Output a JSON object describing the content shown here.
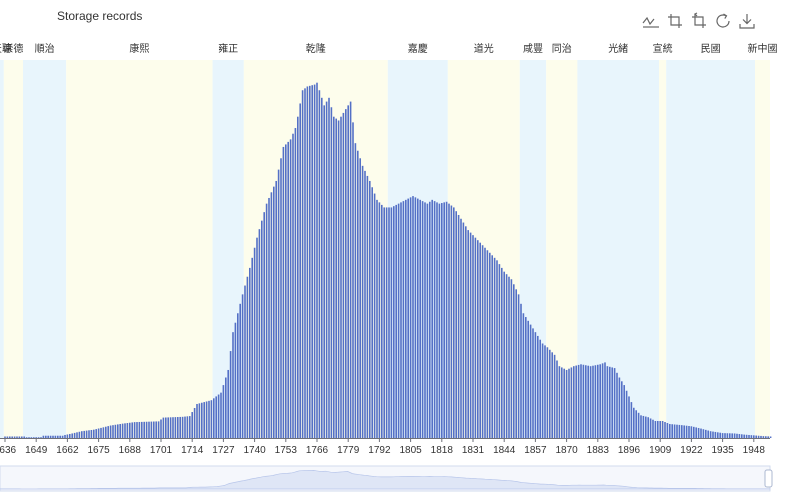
{
  "chart_data": {
    "type": "bar",
    "title": "Storage records",
    "xlabel": "",
    "ylabel": "",
    "x_start": 1636,
    "x_end": 1955,
    "x_tick_labels": [
      "1636",
      "1649",
      "1662",
      "1675",
      "1688",
      "1701",
      "1714",
      "1727",
      "1740",
      "1753",
      "1766",
      "1779",
      "1792",
      "1805",
      "1818",
      "1831",
      "1844",
      "1857",
      "1870",
      "1883",
      "1896",
      "1909",
      "1922",
      "1935",
      "1948"
    ],
    "ylim": [
      0,
      100
    ],
    "grid": false,
    "legend": "none",
    "bar_color": "#5470c6",
    "era_colors": [
      "#e8f5fc",
      "#fdfdec"
    ],
    "eras": [
      {
        "label": "天聰",
        "start": 1627,
        "end": 1636
      },
      {
        "label": "崇德",
        "start": 1636,
        "end": 1644
      },
      {
        "label": "順治",
        "start": 1644,
        "end": 1662
      },
      {
        "label": "康熙",
        "start": 1662,
        "end": 1723
      },
      {
        "label": "雍正",
        "start": 1723,
        "end": 1736
      },
      {
        "label": "乾隆",
        "start": 1736,
        "end": 1796
      },
      {
        "label": "嘉慶",
        "start": 1796,
        "end": 1821
      },
      {
        "label": "道光",
        "start": 1821,
        "end": 1851
      },
      {
        "label": "咸豐",
        "start": 1851,
        "end": 1862
      },
      {
        "label": "同治",
        "start": 1862,
        "end": 1875
      },
      {
        "label": "光緒",
        "start": 1875,
        "end": 1909
      },
      {
        "label": "宣統",
        "start": 1909,
        "end": 1912
      },
      {
        "label": "民國",
        "start": 1912,
        "end": 1949
      },
      {
        "label": "新中國",
        "start": 1949,
        "end": 1957
      }
    ],
    "profile": [
      [
        1636,
        0.4
      ],
      [
        1644,
        0.4
      ],
      [
        1645,
        0.2
      ],
      [
        1651,
        0.2
      ],
      [
        1652,
        0.6
      ],
      [
        1660,
        0.6
      ],
      [
        1661,
        0.8
      ],
      [
        1664,
        1.2
      ],
      [
        1668,
        1.8
      ],
      [
        1673,
        2.2
      ],
      [
        1680,
        3.3
      ],
      [
        1685,
        3.8
      ],
      [
        1690,
        4.2
      ],
      [
        1700,
        4.4
      ],
      [
        1702,
        5.4
      ],
      [
        1710,
        5.6
      ],
      [
        1713,
        5.8
      ],
      [
        1716,
        9
      ],
      [
        1722,
        10
      ],
      [
        1726,
        12
      ],
      [
        1729,
        18
      ],
      [
        1731,
        28
      ],
      [
        1733,
        33
      ],
      [
        1735,
        38
      ],
      [
        1738,
        45
      ],
      [
        1741,
        53
      ],
      [
        1745,
        62
      ],
      [
        1749,
        68
      ],
      [
        1752,
        77
      ],
      [
        1755,
        79
      ],
      [
        1757,
        82
      ],
      [
        1758,
        85
      ],
      [
        1760,
        92
      ],
      [
        1762,
        93
      ],
      [
        1765,
        93.5
      ],
      [
        1766,
        94
      ],
      [
        1769,
        88
      ],
      [
        1771,
        90
      ],
      [
        1773,
        85
      ],
      [
        1775,
        84
      ],
      [
        1778,
        87
      ],
      [
        1780,
        89
      ],
      [
        1782,
        78
      ],
      [
        1785,
        72
      ],
      [
        1788,
        68
      ],
      [
        1791,
        63
      ],
      [
        1794,
        61
      ],
      [
        1797,
        61
      ],
      [
        1800,
        62
      ],
      [
        1803,
        63
      ],
      [
        1806,
        64
      ],
      [
        1809,
        63
      ],
      [
        1812,
        62
      ],
      [
        1814,
        63
      ],
      [
        1817,
        62
      ],
      [
        1820,
        62.5
      ],
      [
        1823,
        61
      ],
      [
        1826,
        58
      ],
      [
        1829,
        55
      ],
      [
        1832,
        53
      ],
      [
        1835,
        51
      ],
      [
        1838,
        49
      ],
      [
        1841,
        47
      ],
      [
        1844,
        44
      ],
      [
        1847,
        42
      ],
      [
        1850,
        38
      ],
      [
        1852,
        33
      ],
      [
        1855,
        30
      ],
      [
        1858,
        27
      ],
      [
        1860,
        25
      ],
      [
        1862,
        24
      ],
      [
        1865,
        22
      ],
      [
        1867,
        19
      ],
      [
        1870,
        18
      ],
      [
        1873,
        19
      ],
      [
        1876,
        19.5
      ],
      [
        1880,
        19
      ],
      [
        1884,
        19.5
      ],
      [
        1886,
        20
      ],
      [
        1887,
        19
      ],
      [
        1890,
        18.5
      ],
      [
        1892,
        16
      ],
      [
        1894,
        14
      ],
      [
        1896,
        11
      ],
      [
        1898,
        8
      ],
      [
        1901,
        6
      ],
      [
        1904,
        5.5
      ],
      [
        1907,
        4.5
      ],
      [
        1910,
        4.5
      ],
      [
        1913,
        3.7
      ],
      [
        1918,
        3.4
      ],
      [
        1922,
        3.1
      ],
      [
        1926,
        2.5
      ],
      [
        1930,
        1.8
      ],
      [
        1935,
        1.3
      ],
      [
        1940,
        1.2
      ],
      [
        1944,
        0.9
      ],
      [
        1948,
        0.7
      ],
      [
        1952,
        0.5
      ],
      [
        1955,
        0.4
      ]
    ]
  },
  "toolbox": {
    "icons": [
      "line-switch-icon",
      "zoom-icon",
      "zoom-reset-icon",
      "restore-icon",
      "download-icon"
    ]
  }
}
